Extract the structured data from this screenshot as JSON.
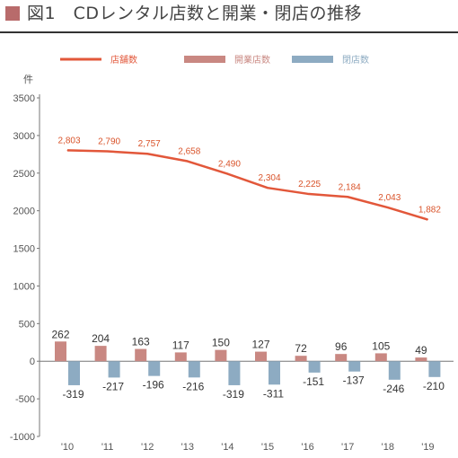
{
  "title": "図1　CDレンタル店数と開業・閉店の推移",
  "colors": {
    "title_square": "#b86b6b",
    "line": "#e2573a",
    "opened": "#c98882",
    "closed": "#8dabc2",
    "axis": "#777777"
  },
  "chart_data": {
    "type": "bar+line",
    "title": "図1　CDレンタル店数と開業・閉店の推移",
    "ylabel": "件",
    "ylim": [
      -1000,
      3500
    ],
    "yticks": [
      3500,
      3000,
      2500,
      2000,
      1500,
      1000,
      500,
      0,
      -500,
      -1000
    ],
    "categories": [
      "'10",
      "'11",
      "'12",
      "'13",
      "'14",
      "'15",
      "'16",
      "'17",
      "'18",
      "'19"
    ],
    "legend_position": "top",
    "series": [
      {
        "name": "店舗数",
        "type": "line",
        "values": [
          2803,
          2790,
          2757,
          2658,
          2490,
          2304,
          2225,
          2184,
          2043,
          1882
        ],
        "labels": [
          "2,803",
          "2,790",
          "2,757",
          "2,658",
          "2,490",
          "2,304",
          "2,225",
          "2,184",
          "2,043",
          "1,882"
        ]
      },
      {
        "name": "開業店数",
        "type": "bar",
        "values": [
          262,
          204,
          163,
          117,
          150,
          127,
          72,
          96,
          105,
          49
        ]
      },
      {
        "name": "閉店数",
        "type": "bar",
        "values": [
          -319,
          -217,
          -196,
          -216,
          -319,
          -311,
          -151,
          -137,
          -246,
          -210
        ]
      }
    ]
  }
}
